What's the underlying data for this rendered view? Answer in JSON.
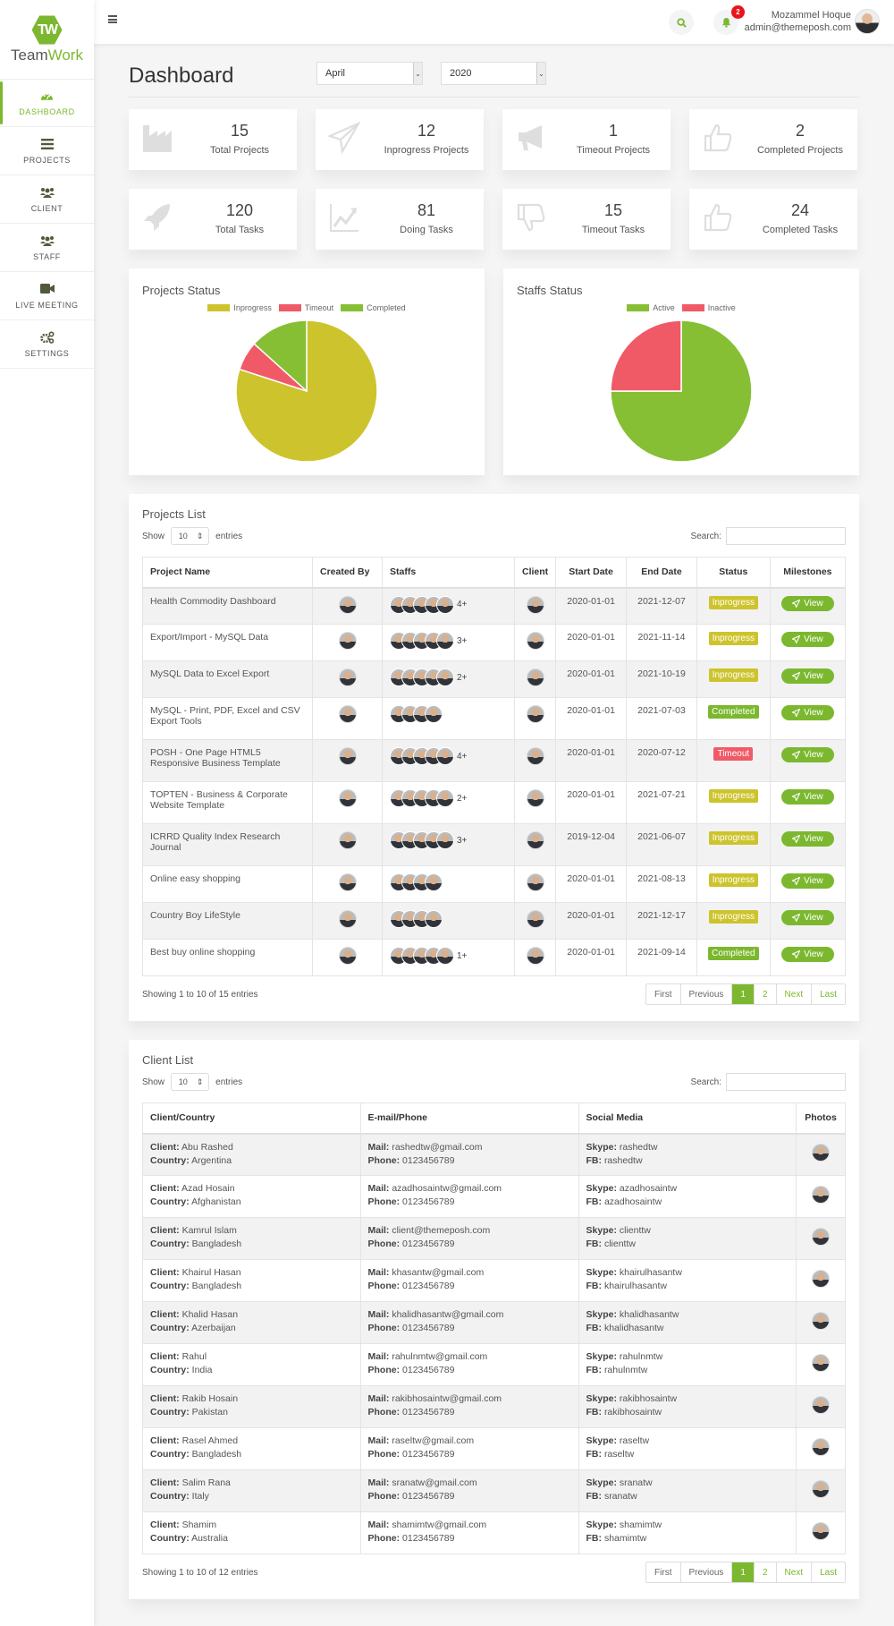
{
  "brand": {
    "logo_letters": "TW",
    "name_prefix": "Team",
    "name_suffix": "Work"
  },
  "sidebar": {
    "items": [
      {
        "label": "DASHBOARD",
        "icon": "dashboard-gauge-icon",
        "active": true
      },
      {
        "label": "PROJECTS",
        "icon": "list-icon"
      },
      {
        "label": "CLIENT",
        "icon": "users-icon"
      },
      {
        "label": "STAFF",
        "icon": "users-icon"
      },
      {
        "label": "LIVE MEETING",
        "icon": "video-camera-icon"
      },
      {
        "label": "SETTINGS",
        "icon": "gears-icon"
      }
    ]
  },
  "topbar": {
    "notification_count": "2",
    "user_name": "Mozammel Hoque",
    "user_email": "admin@themeposh.com"
  },
  "header": {
    "title": "Dashboard",
    "month_select": "April",
    "year_select": "2020"
  },
  "stats": [
    {
      "value": "15",
      "label": "Total Projects",
      "icon": "industry-icon"
    },
    {
      "value": "12",
      "label": "Inprogress Projects",
      "icon": "paper-plane-icon"
    },
    {
      "value": "1",
      "label": "Timeout Projects",
      "icon": "bullhorn-icon"
    },
    {
      "value": "2",
      "label": "Completed Projects",
      "icon": "thumbs-up-icon"
    },
    {
      "value": "120",
      "label": "Total Tasks",
      "icon": "rocket-icon"
    },
    {
      "value": "81",
      "label": "Doing Tasks",
      "icon": "line-chart-icon"
    },
    {
      "value": "15",
      "label": "Timeout Tasks",
      "icon": "thumbs-down-icon"
    },
    {
      "value": "24",
      "label": "Completed Tasks",
      "icon": "thumbs-up-icon"
    }
  ],
  "chart_data": [
    {
      "type": "pie",
      "title": "Projects Status",
      "categories": [
        "Inprogress",
        "Timeout",
        "Completed"
      ],
      "values": [
        12,
        1,
        2
      ],
      "colors": [
        "#cdc42d",
        "#f05a67",
        "#86bf34"
      ],
      "legend_position": "top"
    },
    {
      "type": "pie",
      "title": "Staffs Status",
      "categories": [
        "Active",
        "Inactive"
      ],
      "values": [
        75,
        25
      ],
      "colors": [
        "#86bf34",
        "#f05a67"
      ],
      "legend_position": "top"
    }
  ],
  "colors": {
    "accent": "#7cb82f",
    "inprogress": "#cdc42d",
    "timeout": "#f05a67",
    "completed": "#7cb82f"
  },
  "projects": {
    "title": "Projects List",
    "show_label": "Show",
    "entries_value": "10",
    "entries_label": "entries",
    "search_label": "Search:",
    "columns": [
      "Project Name",
      "Created By",
      "Staffs",
      "Client",
      "Start Date",
      "End Date",
      "Status",
      "Milestones"
    ],
    "view_label": "View",
    "rows": [
      {
        "name": "Health Commodity Dashboard",
        "staff_count": 5,
        "more": "4+",
        "start": "2020-01-01",
        "end": "2021-12-07",
        "status": "Inprogress"
      },
      {
        "name": "Export/Import - MySQL Data",
        "staff_count": 5,
        "more": "3+",
        "start": "2020-01-01",
        "end": "2021-11-14",
        "status": "Inprogress"
      },
      {
        "name": "MySQL Data to Excel Export",
        "staff_count": 5,
        "more": "2+",
        "start": "2020-01-01",
        "end": "2021-10-19",
        "status": "Inprogress"
      },
      {
        "name": "MySQL - Print, PDF, Excel and CSV Export Tools",
        "staff_count": 4,
        "more": "",
        "start": "2020-01-01",
        "end": "2021-07-03",
        "status": "Completed"
      },
      {
        "name": "POSH - One Page HTML5 Responsive Business Template",
        "staff_count": 5,
        "more": "4+",
        "start": "2020-01-01",
        "end": "2020-07-12",
        "status": "Timeout"
      },
      {
        "name": "TOPTEN - Business & Corporate Website Template",
        "staff_count": 5,
        "more": "2+",
        "start": "2020-01-01",
        "end": "2021-07-21",
        "status": "Inprogress"
      },
      {
        "name": "ICRRD Quality Index Research Journal",
        "staff_count": 5,
        "more": "3+",
        "start": "2019-12-04",
        "end": "2021-06-07",
        "status": "Inprogress"
      },
      {
        "name": "Online easy shopping",
        "staff_count": 4,
        "more": "",
        "start": "2020-01-01",
        "end": "2021-08-13",
        "status": "Inprogress"
      },
      {
        "name": "Country Boy LifeStyle",
        "staff_count": 4,
        "more": "",
        "start": "2020-01-01",
        "end": "2021-12-17",
        "status": "Inprogress"
      },
      {
        "name": "Best buy online shopping",
        "staff_count": 5,
        "more": "1+",
        "start": "2020-01-01",
        "end": "2021-09-14",
        "status": "Completed"
      }
    ],
    "info": "Showing 1 to 10 of 15 entries",
    "pager": [
      "First",
      "Previous",
      "1",
      "2",
      "Next",
      "Last"
    ]
  },
  "clients": {
    "title": "Client List",
    "show_label": "Show",
    "entries_value": "10",
    "entries_label": "entries",
    "search_label": "Search:",
    "columns": [
      "Client/Country",
      "E-mail/Phone",
      "Social Media",
      "Photos"
    ],
    "labels": {
      "client": "Client:",
      "country": "Country:",
      "mail": "Mail:",
      "phone": "Phone:",
      "skype": "Skype:",
      "fb": "FB:"
    },
    "rows": [
      {
        "client": "Abu Rashed",
        "country": "Argentina",
        "mail": "rashedtw@gmail.com",
        "phone": "0123456789",
        "skype": "rashedtw",
        "fb": "rashedtw"
      },
      {
        "client": "Azad Hosain",
        "country": "Afghanistan",
        "mail": "azadhosaintw@gmail.com",
        "phone": "0123456789",
        "skype": "azadhosaintw",
        "fb": "azadhosaintw"
      },
      {
        "client": "Kamrul Islam",
        "country": "Bangladesh",
        "mail": "client@themeposh.com",
        "phone": "0123456789",
        "skype": "clienttw",
        "fb": "clienttw"
      },
      {
        "client": "Khairul Hasan",
        "country": "Bangladesh",
        "mail": "khasantw@gmail.com",
        "phone": "0123456789",
        "skype": "khairulhasantw",
        "fb": "khairulhasantw"
      },
      {
        "client": "Khalid Hasan",
        "country": "Azerbaijan",
        "mail": "khalidhasantw@gmail.com",
        "phone": "0123456789",
        "skype": "khalidhasantw",
        "fb": "khalidhasantw"
      },
      {
        "client": "Rahul",
        "country": "India",
        "mail": "rahulnmtw@gmail.com",
        "phone": "0123456789",
        "skype": "rahulnmtw",
        "fb": "rahulnmtw"
      },
      {
        "client": "Rakib Hosain",
        "country": "Pakistan",
        "mail": "rakibhosaintw@gmail.com",
        "phone": "0123456789",
        "skype": "rakibhosaintw",
        "fb": "rakibhosaintw"
      },
      {
        "client": "Rasel Ahmed",
        "country": "Bangladesh",
        "mail": "raseltw@gmail.com",
        "phone": "0123456789",
        "skype": "raseltw",
        "fb": "raseltw"
      },
      {
        "client": "Salim Rana",
        "country": "Italy",
        "mail": "sranatw@gmail.com",
        "phone": "0123456789",
        "skype": "sranatw",
        "fb": "sranatw"
      },
      {
        "client": "Shamim",
        "country": "Australia",
        "mail": "shamimtw@gmail.com",
        "phone": "0123456789",
        "skype": "shamimtw",
        "fb": "shamimtw"
      }
    ],
    "info": "Showing 1 to 10 of 12 entries",
    "pager": [
      "First",
      "Previous",
      "1",
      "2",
      "Next",
      "Last"
    ]
  }
}
